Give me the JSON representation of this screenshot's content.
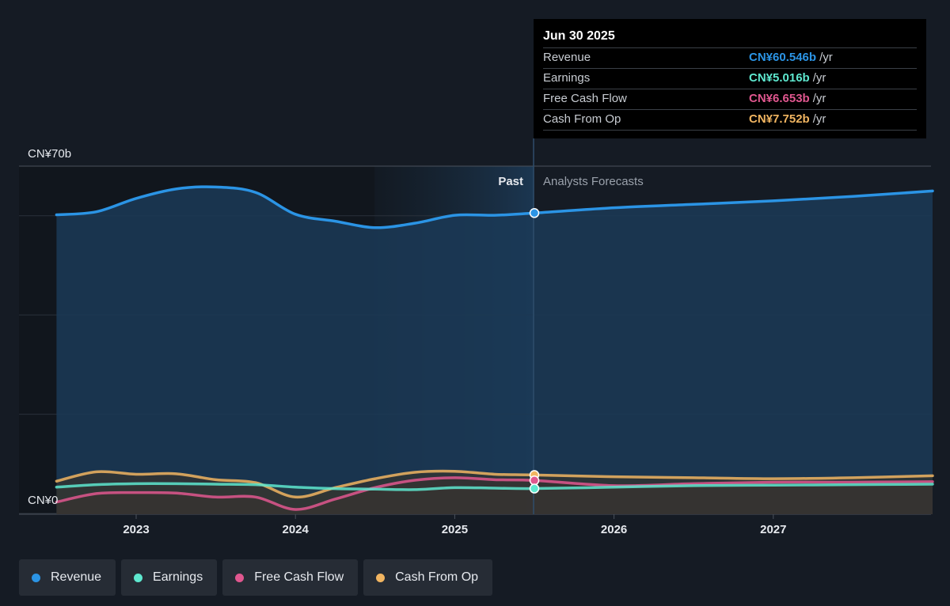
{
  "tooltip": {
    "date": "Jun 30 2025",
    "rows": [
      {
        "label": "Revenue",
        "value": "CN¥60.546b",
        "unit": "/yr",
        "color": "#2b94e5"
      },
      {
        "label": "Earnings",
        "value": "CN¥5.016b",
        "unit": "/yr",
        "color": "#5ee8cf"
      },
      {
        "label": "Free Cash Flow",
        "value": "CN¥6.653b",
        "unit": "/yr",
        "color": "#e0578f"
      },
      {
        "label": "Cash From Op",
        "value": "CN¥7.752b",
        "unit": "/yr",
        "color": "#f1b561"
      }
    ]
  },
  "legend": [
    {
      "label": "Revenue",
      "color": "#2b94e5"
    },
    {
      "label": "Earnings",
      "color": "#5ee8cf"
    },
    {
      "label": "Free Cash Flow",
      "color": "#e0578f"
    },
    {
      "label": "Cash From Op",
      "color": "#f1b561"
    }
  ],
  "chart_data": {
    "type": "line",
    "y_top_label": "CN¥70b",
    "y_bottom_label": "CN¥0",
    "ylim": [
      0,
      70
    ],
    "xlim": [
      2022.5,
      2028.0
    ],
    "x_ticks": [
      2023,
      2024,
      2025,
      2026,
      2027
    ],
    "divider_x": 2025.5,
    "past_label": "Past",
    "forecast_label": "Analysts Forecasts",
    "grid": true,
    "series": [
      {
        "name": "Revenue",
        "color": "#2b94e5",
        "x": [
          2022.5,
          2022.75,
          2023.0,
          2023.25,
          2023.5,
          2023.75,
          2024.0,
          2024.25,
          2024.5,
          2024.75,
          2025.0,
          2025.25,
          2025.5,
          2026.0,
          2026.5,
          2027.0,
          2027.5,
          2028.0
        ],
        "y": [
          60.2,
          60.8,
          63.5,
          65.4,
          65.8,
          64.7,
          60.3,
          58.9,
          57.6,
          58.5,
          60.1,
          60.1,
          60.546,
          61.6,
          62.3,
          63.0,
          63.9,
          65.0
        ]
      },
      {
        "name": "Earnings",
        "color": "#5ee8cf",
        "x": [
          2022.5,
          2022.75,
          2023.0,
          2023.25,
          2023.5,
          2023.75,
          2024.0,
          2024.25,
          2024.5,
          2024.75,
          2025.0,
          2025.25,
          2025.5,
          2026.0,
          2026.5,
          2027.0,
          2027.5,
          2028.0
        ],
        "y": [
          5.3,
          5.8,
          6.0,
          6.0,
          5.9,
          5.8,
          5.3,
          5.0,
          4.9,
          4.8,
          5.2,
          5.1,
          5.016,
          5.3,
          5.6,
          5.7,
          5.8,
          5.9
        ]
      },
      {
        "name": "Free Cash Flow",
        "color": "#e0578f",
        "x": [
          2022.5,
          2022.75,
          2023.0,
          2023.25,
          2023.5,
          2023.75,
          2024.0,
          2024.25,
          2024.5,
          2024.75,
          2025.0,
          2025.25,
          2025.5,
          2026.0,
          2026.5,
          2027.0,
          2027.5,
          2028.0
        ],
        "y": [
          2.3,
          4.0,
          4.2,
          4.1,
          3.3,
          3.3,
          0.8,
          2.9,
          5.2,
          6.7,
          7.2,
          6.8,
          6.653,
          5.6,
          6.0,
          6.3,
          6.3,
          6.4
        ]
      },
      {
        "name": "Cash From Op",
        "color": "#f1b561",
        "x": [
          2022.5,
          2022.75,
          2023.0,
          2023.25,
          2023.5,
          2023.75,
          2024.0,
          2024.25,
          2024.5,
          2024.75,
          2025.0,
          2025.25,
          2025.5,
          2026.0,
          2026.5,
          2027.0,
          2027.5,
          2028.0
        ],
        "y": [
          6.5,
          8.4,
          7.9,
          8.0,
          6.8,
          6.2,
          3.3,
          5.2,
          7.0,
          8.3,
          8.5,
          7.9,
          7.752,
          7.4,
          7.2,
          7.0,
          7.2,
          7.6
        ]
      }
    ]
  }
}
